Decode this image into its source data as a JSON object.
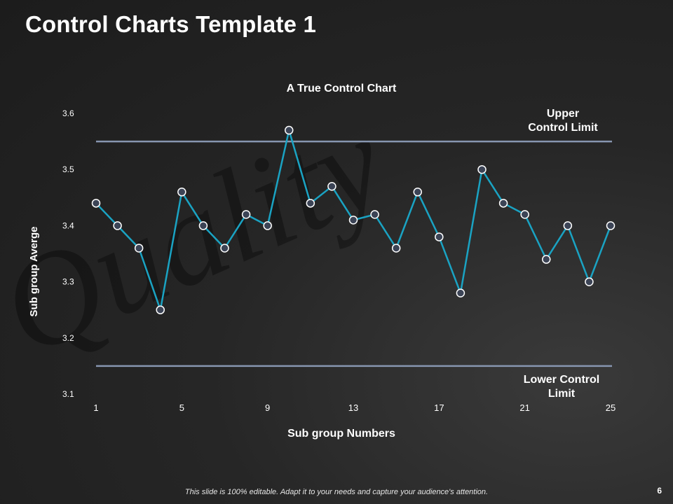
{
  "slide": {
    "title": "Control Charts Template 1",
    "footer_note": "This slide is 100% editable. Adapt it to your needs and capture your audience's attention.",
    "page_number": "6",
    "background_watermark": "Quality"
  },
  "colors": {
    "background": "#1f1f1f",
    "series_line": "#1aa3c3",
    "marker_fill": "#3c4456",
    "marker_stroke": "#ffffff",
    "limit_line": "#8796b0",
    "text": "#ffffff"
  },
  "chart_data": {
    "type": "line",
    "title": "A True Control Chart",
    "xlabel": "Sub group Numbers",
    "ylabel": "Sub group Averge",
    "xlim": [
      1,
      25
    ],
    "ylim": [
      3.1,
      3.6
    ],
    "x_ticks": [
      1,
      5,
      9,
      13,
      17,
      21,
      25
    ],
    "y_ticks": [
      3.1,
      3.2,
      3.3,
      3.4,
      3.5,
      3.6
    ],
    "grid": false,
    "x": [
      1,
      2,
      3,
      4,
      5,
      6,
      7,
      8,
      9,
      10,
      11,
      12,
      13,
      14,
      15,
      16,
      17,
      18,
      19,
      20,
      21,
      22,
      23,
      24,
      25
    ],
    "series": [
      {
        "values": [
          3.44,
          3.4,
          3.36,
          3.25,
          3.46,
          3.4,
          3.36,
          3.42,
          3.4,
          3.57,
          3.44,
          3.47,
          3.41,
          3.42,
          3.36,
          3.46,
          3.38,
          3.28,
          3.5,
          3.44,
          3.42,
          3.34,
          3.4,
          3.3,
          3.4
        ]
      }
    ],
    "limits": [
      {
        "name": "Upper Control Limit",
        "label_lines": [
          "Upper",
          "Control Limit"
        ],
        "value": 3.55
      },
      {
        "name": "Lower Control Limit",
        "label_lines": [
          "Lower Control",
          "Limit"
        ],
        "value": 3.15
      }
    ]
  }
}
